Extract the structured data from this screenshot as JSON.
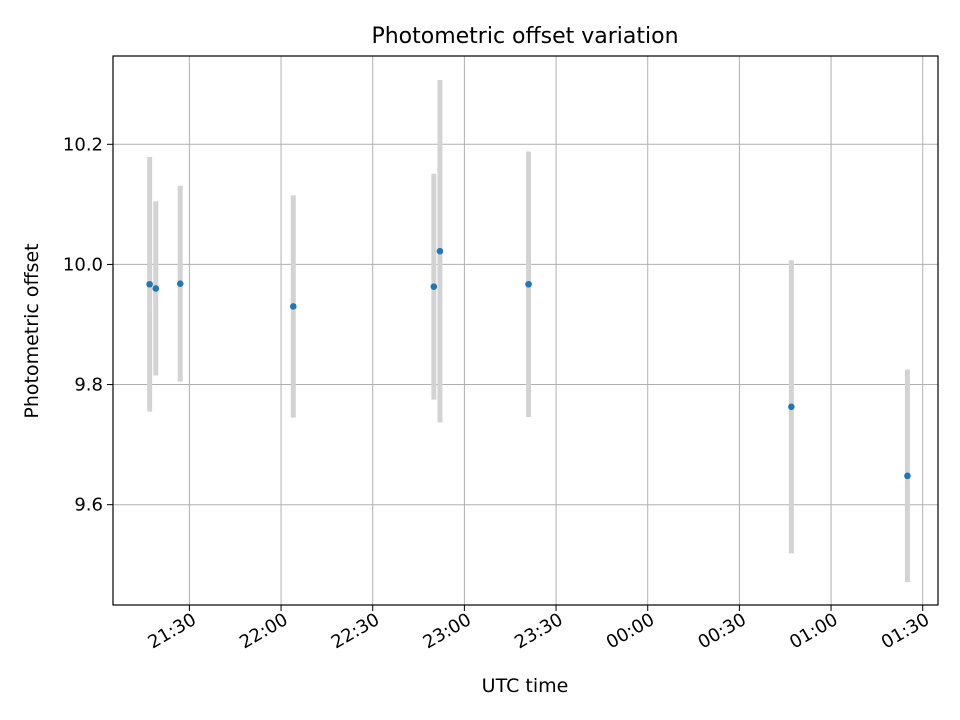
{
  "chart_data": {
    "type": "scatter",
    "title": "Photometric offset variation",
    "xlabel": "UTC time",
    "ylabel": "Photometric offset",
    "x_ticks": [
      "21:30",
      "22:00",
      "22:30",
      "23:00",
      "23:30",
      "00:00",
      "00:30",
      "01:00",
      "01:30"
    ],
    "y_ticks": [
      9.6,
      9.8,
      10.0,
      10.2
    ],
    "xlim": [
      "21:05",
      "01:35"
    ],
    "ylim": [
      9.433,
      10.347
    ],
    "grid": true,
    "marker_color": "#1f77b4",
    "errorbar_color": "#d3d3d3",
    "points": [
      {
        "x": "21:17",
        "y": 9.967,
        "err": 0.212
      },
      {
        "x": "21:19",
        "y": 9.96,
        "err": 0.145
      },
      {
        "x": "21:27",
        "y": 9.968,
        "err": 0.163
      },
      {
        "x": "22:04",
        "y": 9.93,
        "err": 0.185
      },
      {
        "x": "22:50",
        "y": 9.963,
        "err": 0.188
      },
      {
        "x": "22:52",
        "y": 10.022,
        "err": 0.285
      },
      {
        "x": "23:21",
        "y": 9.967,
        "err": 0.221
      },
      {
        "x": "00:47",
        "y": 9.763,
        "err": 0.244
      },
      {
        "x": "01:25",
        "y": 9.648,
        "err": 0.177
      }
    ]
  }
}
